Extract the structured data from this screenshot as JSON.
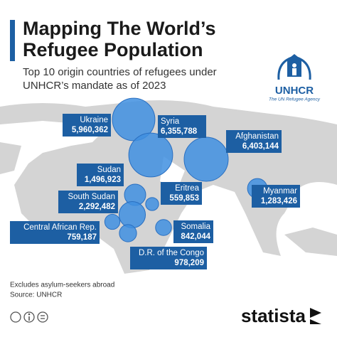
{
  "header": {
    "title_lines": [
      "Mapping The World’s",
      "Refugee Population"
    ],
    "subtitle_lines": [
      "Top 10 origin countries of refugees under",
      "UNHCR’s mandate as of 2023"
    ]
  },
  "logo": {
    "name": "UNHCR",
    "tagline": "The UN Refugee Agency"
  },
  "map": {
    "countries": [
      "Ukraine",
      "Syria",
      "Afghanistan",
      "Sudan",
      "Eritrea",
      "South Sudan",
      "Somalia",
      "Central African Rep.",
      "D.R. of the Congo",
      "Myanmar"
    ],
    "values": [
      5960362,
      6355788,
      6403144,
      1496923,
      559853,
      2292482,
      842044,
      759187,
      978209,
      1283426
    ],
    "value_labels": [
      "5,960,362",
      "6,355,788",
      "6,403,144",
      "1,496,923",
      "559,853",
      "2,292,482",
      "842,044",
      "759,187",
      "978,209",
      "1,283,426"
    ]
  },
  "footer": {
    "note": "Excludes asylum-seekers abroad",
    "source": "Source: UNHCR",
    "brand": "statista"
  }
}
